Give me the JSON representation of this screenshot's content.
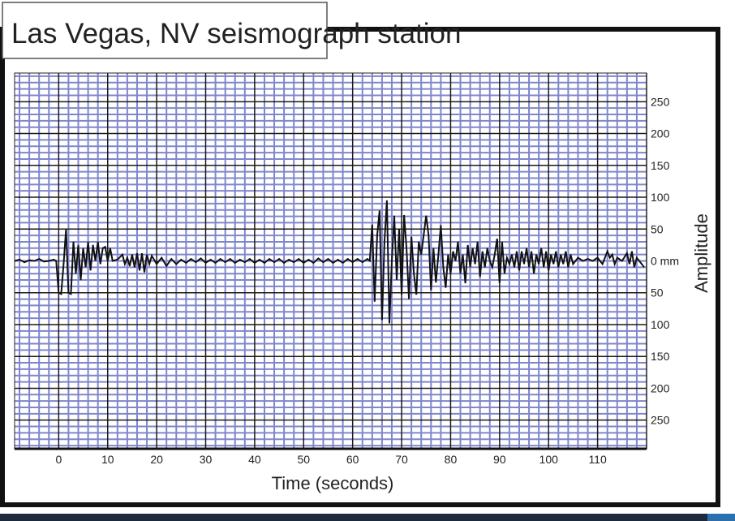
{
  "chart_data": {
    "type": "line",
    "title": "Las Vegas, NV seismograph station",
    "xlabel": "Time (seconds)",
    "ylabel": "Amplitude",
    "y_unit_label": "0 mm",
    "xlim": [
      -9,
      120
    ],
    "ylim": [
      -295,
      295
    ],
    "x_ticks": [
      0,
      10,
      20,
      30,
      40,
      50,
      60,
      70,
      80,
      90,
      100,
      110
    ],
    "x_tick_labels": [
      "0",
      "10",
      "20",
      "30",
      "40",
      "50",
      "60",
      "70",
      "80",
      "90",
      "100",
      "110"
    ],
    "y_ticks": [
      250,
      200,
      150,
      100,
      50,
      0,
      -50,
      -100,
      -150,
      -200,
      -250
    ],
    "y_tick_labels": [
      "250",
      "200",
      "150",
      "100",
      "50",
      "0 mm",
      "50",
      "100",
      "150",
      "200",
      "250"
    ],
    "y_axis_side": "right",
    "grid": true,
    "grid_major_color": "#1a1a1a",
    "grid_minor_color": "#7f86cc",
    "line_color": "#111111",
    "series": [
      {
        "x": [
          -9,
          -8,
          -7,
          -6,
          -5,
          -4,
          -3,
          -2,
          -1,
          -0.5,
          0,
          0.5,
          1,
          1.5,
          2,
          2.5,
          3,
          3.5,
          4,
          4.5,
          5,
          5.5,
          6,
          6.5,
          7,
          7.5,
          8,
          8.5,
          9,
          9.5,
          10,
          10.5,
          11,
          12,
          13,
          13.5,
          14,
          14.5,
          15,
          15.5,
          16,
          16.5,
          17,
          17.5,
          18,
          18.5,
          19,
          20,
          21,
          22,
          23,
          24,
          25,
          26,
          27,
          28,
          29,
          30,
          31,
          32,
          33,
          34,
          35,
          36,
          37,
          38,
          39,
          40,
          41,
          42,
          43,
          44,
          45,
          46,
          47,
          48,
          49,
          50,
          51,
          52,
          53,
          54,
          55,
          56,
          57,
          58,
          59,
          60,
          61,
          62,
          63,
          63.5,
          64,
          64.5,
          65,
          65.5,
          66,
          66.5,
          67,
          67.5,
          68,
          68.5,
          69,
          69.5,
          70,
          70.5,
          71,
          71.5,
          72,
          72.5,
          73,
          73.5,
          74,
          75,
          75.5,
          76,
          76.5,
          77,
          77.5,
          78,
          78.5,
          79,
          79.5,
          80,
          80.5,
          81,
          81.5,
          82,
          82.5,
          83,
          83.5,
          84,
          84.5,
          85,
          85.5,
          86,
          86.5,
          87,
          87.5,
          88,
          88.5,
          89,
          89.5,
          90,
          90.5,
          91,
          91.5,
          92,
          92.5,
          93,
          93.5,
          94,
          94.5,
          95,
          95.5,
          96,
          96.5,
          97,
          97.5,
          98,
          98.5,
          99,
          99.5,
          100,
          100.5,
          101,
          101.5,
          102,
          102.5,
          103,
          103.5,
          104,
          104.5,
          105,
          106,
          107,
          108,
          109,
          110,
          111,
          112,
          112.5,
          113,
          113.5,
          114,
          115,
          116,
          116.5,
          117,
          117.5,
          118,
          119,
          119.5
        ],
        "y": [
          0,
          2,
          -2,
          1,
          0,
          3,
          -1,
          0,
          2,
          0,
          -50,
          -52,
          -5,
          50,
          -50,
          -52,
          30,
          -20,
          25,
          -30,
          20,
          -10,
          30,
          -15,
          25,
          0,
          30,
          -5,
          20,
          22,
          0,
          20,
          0,
          2,
          10,
          -5,
          5,
          -8,
          10,
          -10,
          12,
          -15,
          12,
          -18,
          10,
          -5,
          8,
          -5,
          5,
          -8,
          3,
          -5,
          2,
          -3,
          3,
          -2,
          4,
          -3,
          2,
          -3,
          3,
          -2,
          3,
          -3,
          2,
          -2,
          3,
          -3,
          2,
          -3,
          3,
          -2,
          3,
          -3,
          2,
          -2,
          3,
          -3,
          2,
          -3,
          4,
          -2,
          3,
          -3,
          2,
          -3,
          3,
          -2,
          3,
          -2,
          3,
          0,
          57,
          -64,
          40,
          79,
          -93,
          30,
          95,
          -98,
          0,
          71,
          -30,
          50,
          -53,
          72,
          20,
          -60,
          38,
          -20,
          -53,
          30,
          10,
          71,
          40,
          -46,
          20,
          -34,
          10,
          56,
          -10,
          -42,
          10,
          -20,
          15,
          0,
          30,
          -20,
          10,
          -35,
          25,
          -10,
          20,
          -5,
          30,
          -25,
          15,
          -10,
          20,
          0,
          -10,
          10,
          35,
          -35,
          30,
          -20,
          5,
          -5,
          10,
          -10,
          15,
          -15,
          15,
          -5,
          20,
          -10,
          15,
          -20,
          10,
          -5,
          20,
          -10,
          15,
          -15,
          10,
          -5,
          15,
          -10,
          10,
          -5,
          15,
          -10,
          10,
          -5,
          5,
          0,
          3,
          0,
          5,
          -5,
          15,
          5,
          10,
          -5,
          5,
          0,
          12,
          -5,
          15,
          -10,
          5,
          -5,
          -10
        ]
      }
    ]
  }
}
